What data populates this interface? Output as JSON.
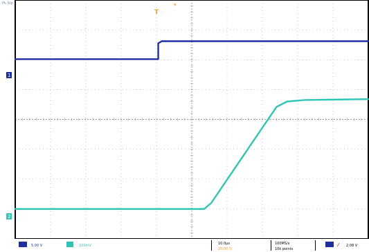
{
  "top_status": "Pk Stp",
  "trigger_marker": "T",
  "channel_markers": [
    {
      "label": "1",
      "color": "#1f2fa0"
    },
    {
      "label": "2",
      "color": "#2ec4b6"
    }
  ],
  "status_bar": {
    "ch1_scale": "5.00 V",
    "ch2_scale": "200mV",
    "time_scale": "10.0µs",
    "time_offset": "20.00 %",
    "sample_rate": "100MS/s",
    "record_length": "10k points",
    "trigger_level": "2.08 V"
  },
  "colors": {
    "ch1": "#1f2fa0",
    "ch2": "#2ec4b6",
    "trigger": "#f0a030",
    "grid": "#9a9a9a",
    "frame": "#000000"
  },
  "chart_data": {
    "type": "line",
    "title": "",
    "xlabel": "",
    "ylabel": "",
    "grid": true,
    "x_divisions": 10,
    "y_divisions": 8,
    "xlim": [
      0,
      10
    ],
    "ylim": [
      -4,
      4
    ],
    "series": [
      {
        "name": "",
        "color": "#1f2fa0",
        "x": [
          0,
          4.05,
          4.05,
          4.15,
          10
        ],
        "y": [
          2.02,
          2.02,
          2.55,
          2.62,
          2.62
        ]
      },
      {
        "name": "",
        "color": "#2ec4b6",
        "x": [
          0,
          5.35,
          5.55,
          7.4,
          7.7,
          8.2,
          10
        ],
        "y": [
          -3.0,
          -3.0,
          -2.8,
          0.42,
          0.6,
          0.65,
          0.68
        ]
      }
    ]
  }
}
